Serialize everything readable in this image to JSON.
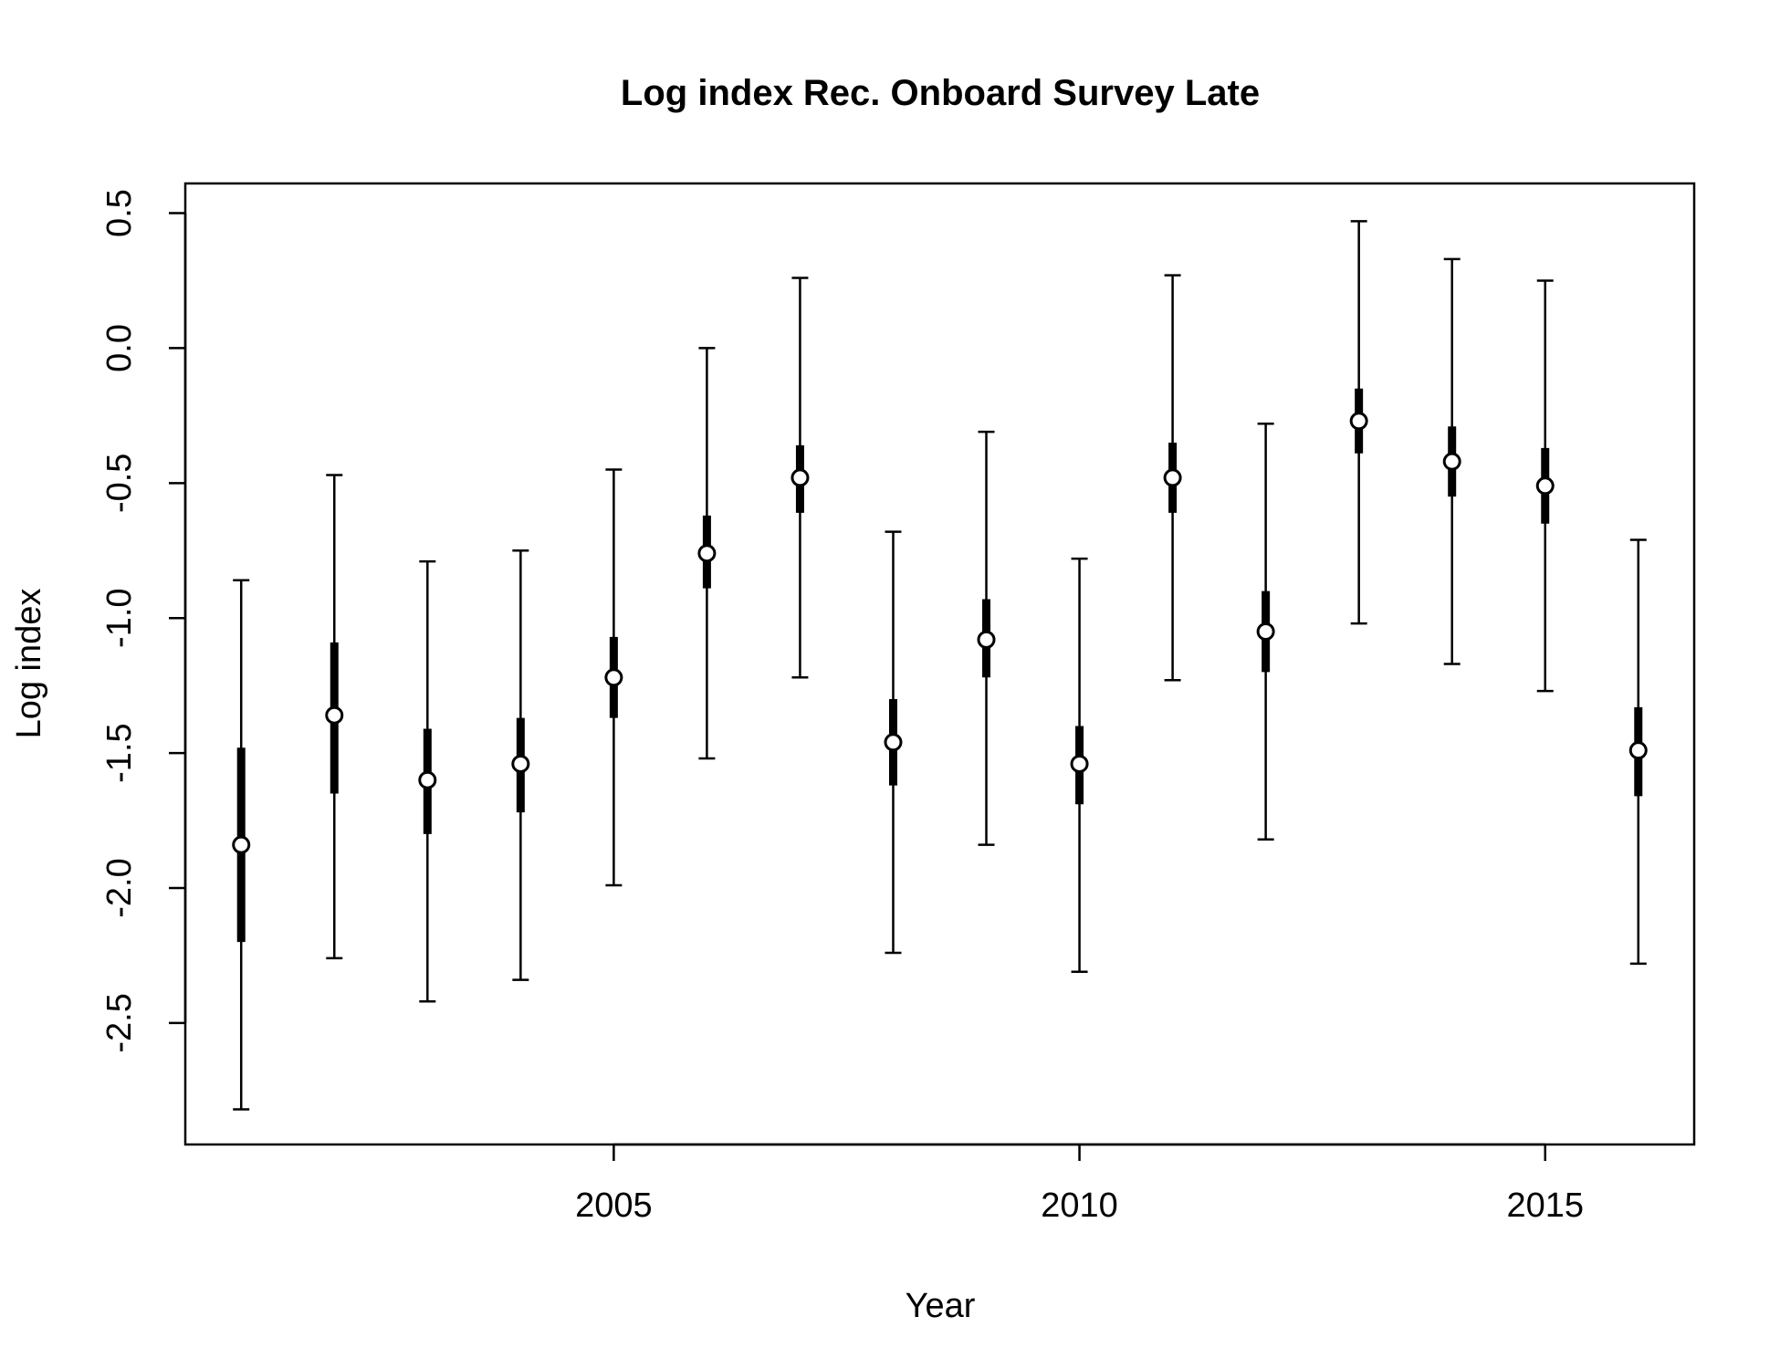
{
  "chart_data": {
    "type": "scatter",
    "title": "Log index Rec. Onboard Survey Late",
    "xlabel": "Year",
    "ylabel": "Log index",
    "xlim": [
      2000.4,
      2016.6
    ],
    "ylim": [
      -2.95,
      0.61
    ],
    "x_ticks": [
      2005,
      2010,
      2015
    ],
    "x_tick_labels": [
      "2005",
      "2010",
      "2015"
    ],
    "y_ticks": [
      -2.5,
      -2.0,
      -1.5,
      -1.0,
      -0.5,
      0.0,
      0.5
    ],
    "y_tick_labels": [
      "-2.5",
      "-2.0",
      "-1.5",
      "-1.0",
      "-0.5",
      "0.0",
      "0.5"
    ],
    "grid": false,
    "legend": "none",
    "series": [
      {
        "points": [
          {
            "x": 2001,
            "y": -1.84,
            "inner_low": -2.2,
            "inner_high": -1.48,
            "outer_low": -2.82,
            "outer_high": -0.86
          },
          {
            "x": 2002,
            "y": -1.36,
            "inner_low": -1.65,
            "inner_high": -1.09,
            "outer_low": -2.26,
            "outer_high": -0.47
          },
          {
            "x": 2003,
            "y": -1.6,
            "inner_low": -1.8,
            "inner_high": -1.41,
            "outer_low": -2.42,
            "outer_high": -0.79
          },
          {
            "x": 2004,
            "y": -1.54,
            "inner_low": -1.72,
            "inner_high": -1.37,
            "outer_low": -2.34,
            "outer_high": -0.75
          },
          {
            "x": 2005,
            "y": -1.22,
            "inner_low": -1.37,
            "inner_high": -1.07,
            "outer_low": -1.99,
            "outer_high": -0.45
          },
          {
            "x": 2006,
            "y": -0.76,
            "inner_low": -0.89,
            "inner_high": -0.62,
            "outer_low": -1.52,
            "outer_high": 0.0
          },
          {
            "x": 2007,
            "y": -0.48,
            "inner_low": -0.61,
            "inner_high": -0.36,
            "outer_low": -1.22,
            "outer_high": 0.26
          },
          {
            "x": 2008,
            "y": -1.46,
            "inner_low": -1.62,
            "inner_high": -1.3,
            "outer_low": -2.24,
            "outer_high": -0.68
          },
          {
            "x": 2009,
            "y": -1.08,
            "inner_low": -1.22,
            "inner_high": -0.93,
            "outer_low": -1.84,
            "outer_high": -0.31
          },
          {
            "x": 2010,
            "y": -1.54,
            "inner_low": -1.69,
            "inner_high": -1.4,
            "outer_low": -2.31,
            "outer_high": -0.78
          },
          {
            "x": 2011,
            "y": -0.48,
            "inner_low": -0.61,
            "inner_high": -0.35,
            "outer_low": -1.23,
            "outer_high": 0.27
          },
          {
            "x": 2012,
            "y": -1.05,
            "inner_low": -1.2,
            "inner_high": -0.9,
            "outer_low": -1.82,
            "outer_high": -0.28
          },
          {
            "x": 2013,
            "y": -0.27,
            "inner_low": -0.39,
            "inner_high": -0.15,
            "outer_low": -1.02,
            "outer_high": 0.47
          },
          {
            "x": 2014,
            "y": -0.42,
            "inner_low": -0.55,
            "inner_high": -0.29,
            "outer_low": -1.17,
            "outer_high": 0.33
          },
          {
            "x": 2015,
            "y": -0.51,
            "inner_low": -0.65,
            "inner_high": -0.37,
            "outer_low": -1.27,
            "outer_high": 0.25
          },
          {
            "x": 2016,
            "y": -1.49,
            "inner_low": -1.66,
            "inner_high": -1.33,
            "outer_low": -2.28,
            "outer_high": -0.71
          }
        ]
      }
    ]
  }
}
